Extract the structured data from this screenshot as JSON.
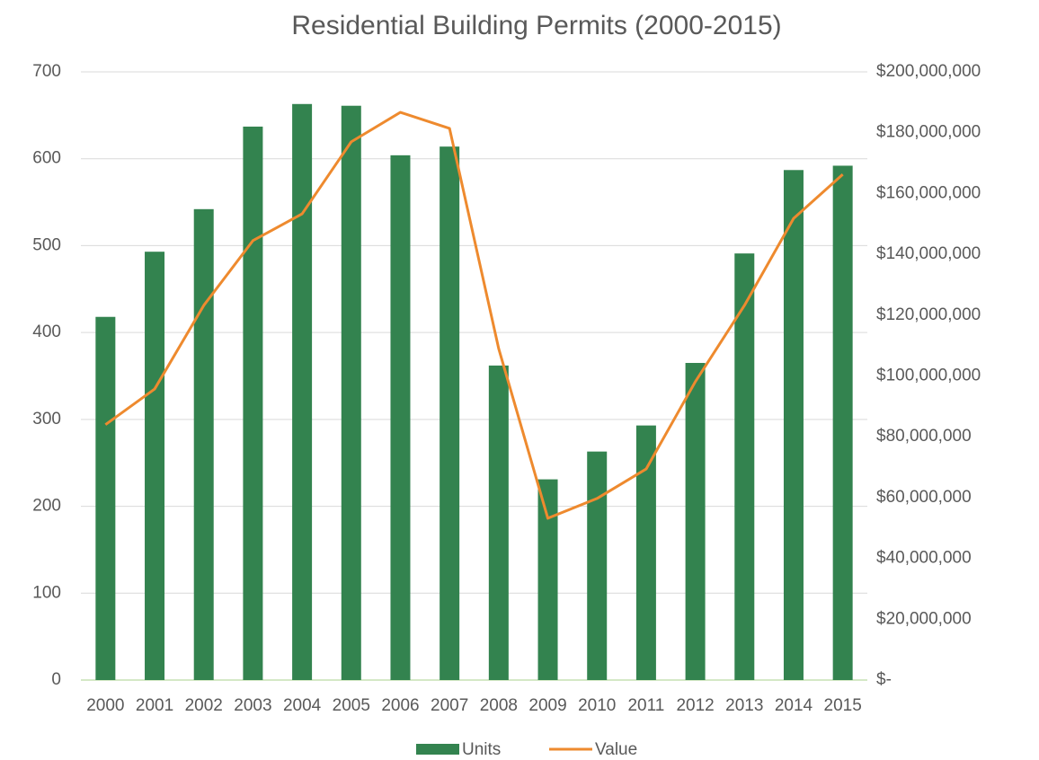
{
  "chart_data": {
    "type": "bar",
    "title": "Residential Building Permits (2000-2015)",
    "categories": [
      "2000",
      "2001",
      "2002",
      "2003",
      "2004",
      "2005",
      "2006",
      "2007",
      "2008",
      "2009",
      "2010",
      "2011",
      "2012",
      "2013",
      "2014",
      "2015"
    ],
    "series": [
      {
        "name": "Units",
        "type": "bar",
        "color": "#33834f",
        "values": [
          418,
          493,
          542,
          637,
          663,
          661,
          604,
          614,
          362,
          231,
          263,
          293,
          365,
          491,
          587,
          592
        ]
      },
      {
        "name": "Value",
        "type": "line",
        "axis": "y2",
        "color": "#ee8a2e",
        "values": [
          84000000,
          95700000,
          123200000,
          144500000,
          153300000,
          177000000,
          186700000,
          181400000,
          109000000,
          53200000,
          59700000,
          69400000,
          98100000,
          123200000,
          151800000,
          166300000
        ]
      }
    ],
    "ylim": [
      0,
      700
    ],
    "yticks": [
      0,
      100,
      200,
      300,
      400,
      500,
      600,
      700
    ],
    "y2lim": [
      0,
      200000000
    ],
    "y2ticks": [
      {
        "value": 0,
        "label": "$-"
      },
      {
        "value": 20000000,
        "label": "$20,000,000"
      },
      {
        "value": 40000000,
        "label": "$40,000,000"
      },
      {
        "value": 60000000,
        "label": "$60,000,000"
      },
      {
        "value": 80000000,
        "label": "$80,000,000"
      },
      {
        "value": 100000000,
        "label": "$100,000,000"
      },
      {
        "value": 120000000,
        "label": "$120,000,000"
      },
      {
        "value": 140000000,
        "label": "$140,000,000"
      },
      {
        "value": 160000000,
        "label": "$160,000,000"
      },
      {
        "value": 180000000,
        "label": "$180,000,000"
      },
      {
        "value": 200000000,
        "label": "$200,000,000"
      }
    ],
    "grid": true,
    "legend": "bottom"
  }
}
